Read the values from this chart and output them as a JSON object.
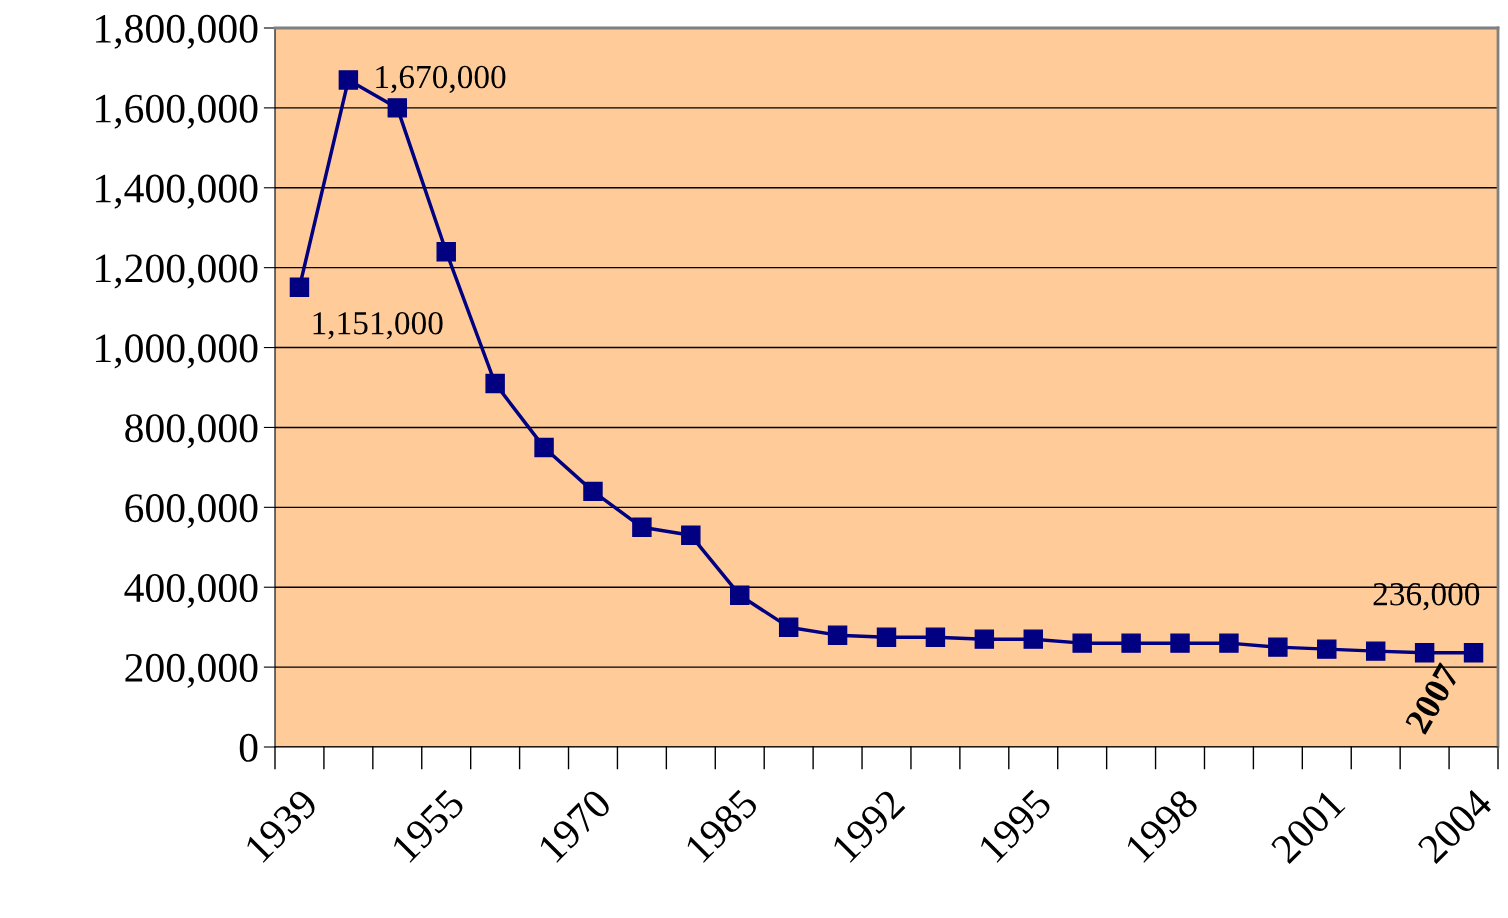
{
  "chart_data": {
    "type": "line",
    "categories": [
      "1939",
      null,
      null,
      "1955",
      null,
      null,
      "1970",
      null,
      null,
      "1985",
      null,
      null,
      "1992",
      null,
      null,
      "1995",
      null,
      null,
      "1998",
      null,
      null,
      "2001",
      null,
      null,
      "2004"
    ],
    "series": [
      {
        "color": "#000080",
        "values": [
          1151000,
          1670000,
          1600000,
          1240000,
          910000,
          750000,
          640000,
          550000,
          530000,
          380000,
          300000,
          280000,
          275000,
          275000,
          270000,
          270000,
          260000,
          260000,
          260000,
          260000,
          250000,
          245000,
          240000,
          236000,
          236000
        ],
        "value_labels": [
          "1,151,000",
          "1,670,000",
          null,
          null,
          null,
          null,
          null,
          null,
          null,
          null,
          null,
          null,
          null,
          null,
          null,
          null,
          null,
          null,
          null,
          null,
          null,
          null,
          null,
          null,
          "236,000"
        ]
      }
    ],
    "ylim": [
      0,
      1800000
    ],
    "yticks": [
      {
        "value": 0,
        "label": "0"
      },
      {
        "value": 200000,
        "label": "200,000"
      },
      {
        "value": 400000,
        "label": "400,000"
      },
      {
        "value": 600000,
        "label": "600,000"
      },
      {
        "value": 800000,
        "label": "800,000"
      },
      {
        "value": 1000000,
        "label": "1,000,000"
      },
      {
        "value": 1200000,
        "label": "1,200,000"
      },
      {
        "value": 1400000,
        "label": "1,400,000"
      },
      {
        "value": 1600000,
        "label": "1,600,000"
      },
      {
        "value": 1800000,
        "label": "1,800,000"
      }
    ],
    "grid": "y",
    "marker": "square",
    "line_style": "solid",
    "legend": false,
    "annotations": [
      "2007"
    ]
  }
}
